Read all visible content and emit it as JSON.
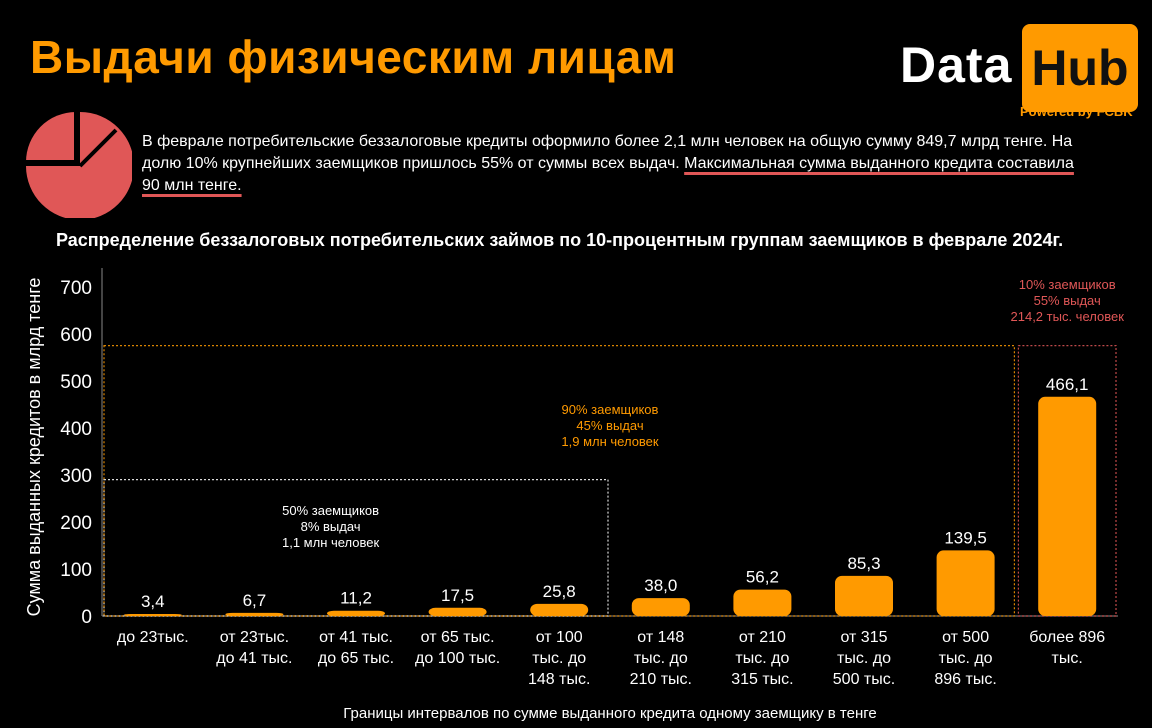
{
  "header": {
    "title": "Выдачи физическим лицам",
    "logo": {
      "data": "Data",
      "hub": "Hub",
      "powered": "Powered by FCBK"
    }
  },
  "summary": {
    "text_plain": "В феврале потребительские беззалоговые кредиты оформило более 2,1 млн человек на общую сумму 849,7 млрд тенге. На долю 10% крупнейших заемщиков пришлось 55% от суммы всех выдач. ",
    "text_underlined": "Максимальная сумма выданного кредита составила 90 млн тенге."
  },
  "colors": {
    "accent": "#ff9a00",
    "pie": "#e05757",
    "annotation_red": "#e05757",
    "annotation_orange": "#ff9a00"
  },
  "chart_data": {
    "type": "bar",
    "title": "Распределение беззалоговых потребительских займов по 10-процентным группам заемщиков в феврале 2024г.",
    "xlabel": "Границы интервалов по сумме выданного кредита одному заемщику  в тенге",
    "ylabel": "Сумма выданных кредитов в млрд тенге",
    "ylim": [
      0,
      740
    ],
    "yticks": [
      0,
      100,
      200,
      300,
      400,
      500,
      600,
      700
    ],
    "categories": [
      [
        "до 23тыс."
      ],
      [
        "от 23тыс.",
        "до 41 тыс."
      ],
      [
        "от 41 тыс.",
        "до 65 тыс."
      ],
      [
        "от 65 тыс.",
        "до 100 тыс."
      ],
      [
        "от 100",
        "тыс. до",
        "148 тыс."
      ],
      [
        "от 148",
        "тыс. до",
        "210 тыс."
      ],
      [
        "от 210",
        "тыс. до",
        "315 тыс."
      ],
      [
        "от 315",
        "тыс. до",
        "500 тыс."
      ],
      [
        "от 500",
        "тыс. до",
        "896 тыс."
      ],
      [
        "более 896",
        "тыс."
      ]
    ],
    "values": [
      3.4,
      6.7,
      11.2,
      17.5,
      25.8,
      38.0,
      56.2,
      85.3,
      139.5,
      466.1
    ],
    "value_labels": [
      "3,4",
      "6,7",
      "11,2",
      "17,5",
      "25,8",
      "38,0",
      "56,2",
      "85,3",
      "139,5",
      "466,1"
    ],
    "grid": false,
    "groups": [
      {
        "from_index": 0,
        "to_index": 4,
        "box_top_value": 290,
        "label_lines": [
          "50% заемщиков",
          "8% выдач",
          "1,1 млн человек"
        ],
        "color": "#ffffff",
        "label_value": 215
      },
      {
        "from_index": 0,
        "to_index": 8,
        "box_top_value": 575,
        "label_lines": [
          "90% заемщиков",
          "45% выдач",
          "1,9 млн человек"
        ],
        "color": "#ff9a00",
        "label_value": 430
      },
      {
        "from_index": 9,
        "to_index": 9,
        "box_top_value": 575,
        "label_lines": [
          "10% заемщиков",
          "55% выдач",
          "214,2 тыс. человек"
        ],
        "color": "#e05757",
        "label_value": 695
      }
    ]
  }
}
